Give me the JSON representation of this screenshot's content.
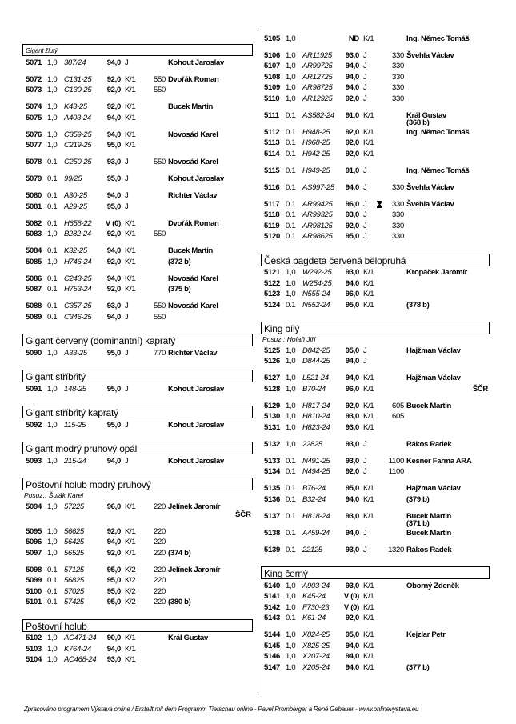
{
  "left_column": [
    {
      "header": "Gigant žlutý",
      "header_style": "small",
      "groups": [
        [
          [
            "5071",
            "1,0",
            "387/24",
            "94,0",
            "J",
            "",
            "Kohout Jaroslav"
          ]
        ],
        [
          [
            "5072",
            "1,0",
            "C131-25",
            "92,0",
            "K/1",
            "550",
            "Dvořák Roman"
          ],
          [
            "5073",
            "1,0",
            "C130-25",
            "92,0",
            "K/1",
            "550",
            ""
          ]
        ],
        [
          [
            "5074",
            "1,0",
            "K43-25",
            "92,0",
            "K/1",
            "",
            "Bucek Martin"
          ],
          [
            "5075",
            "1,0",
            "A403-24",
            "94,0",
            "K/1",
            "",
            ""
          ]
        ],
        [
          [
            "5076",
            "1,0",
            "C359-25",
            "94,0",
            "K/1",
            "",
            "Novosád Karel"
          ],
          [
            "5077",
            "1,0",
            "C219-25",
            "95,0",
            "K/1",
            "",
            ""
          ]
        ],
        [
          [
            "5078",
            "0.1",
            "C250-25",
            "93,0",
            "J",
            "550",
            "Novosád Karel"
          ]
        ],
        [
          [
            "5079",
            "0.1",
            "99/25",
            "95,0",
            "J",
            "",
            "Kohout Jaroslav"
          ]
        ],
        [
          [
            "5080",
            "0.1",
            "A30-25",
            "94,0",
            "J",
            "",
            "Richter Václav"
          ],
          [
            "5081",
            "0.1",
            "A29-25",
            "95,0",
            "J",
            "",
            ""
          ]
        ],
        [
          [
            "5082",
            "0.1",
            "H658-22",
            "V (0)",
            "K/1",
            "",
            "Dvořák Roman"
          ],
          [
            "5083",
            "1,0",
            "B282-24",
            "92,0",
            "K/1",
            "550",
            ""
          ]
        ],
        [
          [
            "5084",
            "0.1",
            "K32-25",
            "94,0",
            "K/1",
            "",
            "Bucek Martin"
          ],
          [
            "5085",
            "1,0",
            "H746-24",
            "92,0",
            "K/1",
            "",
            "(372 b)"
          ]
        ],
        [
          [
            "5086",
            "0.1",
            "C243-25",
            "94,0",
            "K/1",
            "",
            "Novosád Karel"
          ],
          [
            "5087",
            "0.1",
            "H753-24",
            "92,0",
            "K/1",
            "",
            "(375 b)"
          ]
        ],
        [
          [
            "5088",
            "0.1",
            "C357-25",
            "93,0",
            "J",
            "550",
            "Novosád Karel"
          ],
          [
            "5089",
            "0.1",
            "C346-25",
            "94,0",
            "J",
            "550",
            ""
          ]
        ]
      ]
    },
    {
      "header": "Gigant červený (dominantní) kapratý",
      "groups": [
        [
          [
            "5090",
            "1,0",
            "A33-25",
            "95,0",
            "J",
            "770",
            "Richter Václav"
          ]
        ]
      ]
    },
    {
      "header": "Gigant stříbřitý",
      "groups": [
        [
          [
            "5091",
            "1,0",
            "148-25",
            "95,0",
            "J",
            "",
            "Kohout Jaroslav"
          ]
        ]
      ]
    },
    {
      "header": "Gigant stříbřitý kapratý",
      "groups": [
        [
          [
            "5092",
            "1,0",
            "115-25",
            "95,0",
            "J",
            "",
            "Kohout Jaroslav"
          ]
        ]
      ]
    },
    {
      "header": "Gigant modrý pruhový opál",
      "groups": [
        [
          [
            "5093",
            "1,0",
            "215-24",
            "94,0",
            "J",
            "",
            "Kohout Jaroslav"
          ]
        ]
      ]
    },
    {
      "header": "Poštovní holub modrý pruhový",
      "judge": "Posuz.: Šulák Karel",
      "groups": [
        [
          [
            "5094",
            "1,0",
            "57225",
            "96,0",
            "K/1",
            "220",
            "Jelínek Jaromír",
            {
              "award_line": "ŠČR"
            }
          ]
        ],
        [
          [
            "5095",
            "1,0",
            "56625",
            "92,0",
            "K/1",
            "220",
            ""
          ],
          [
            "5096",
            "1,0",
            "56425",
            "94,0",
            "K/1",
            "220",
            ""
          ],
          [
            "5097",
            "1,0",
            "56525",
            "92,0",
            "K/1",
            "220",
            "(374 b)"
          ]
        ],
        [
          [
            "5098",
            "0.1",
            "57125",
            "95,0",
            "K/2",
            "220",
            "Jelínek Jaromír"
          ],
          [
            "5099",
            "0.1",
            "56825",
            "95,0",
            "K/2",
            "220",
            ""
          ],
          [
            "5100",
            "0.1",
            "57025",
            "95,0",
            "K/2",
            "220",
            ""
          ],
          [
            "5101",
            "0.1",
            "57425",
            "95,0",
            "K/2",
            "220",
            "(380 b)"
          ]
        ]
      ]
    },
    {
      "header": "Poštovní holub",
      "groups": [
        [
          [
            "5102",
            "1,0",
            "AC471-24",
            "90,0",
            "K/1",
            "",
            "Král Gustav"
          ],
          [
            "5103",
            "1,0",
            "K764-24",
            "94,0",
            "K/1",
            "",
            ""
          ],
          [
            "5104",
            "1,0",
            "AC468-24",
            "93,0",
            "K/1",
            "",
            ""
          ]
        ]
      ]
    }
  ],
  "right_column": [
    {
      "header": "",
      "groups": [
        [
          [
            "5105",
            "1,0",
            "",
            "ND",
            "K/1",
            "",
            "Ing. Němec Tomáš"
          ]
        ],
        [
          [
            "5106",
            "1,0",
            "AR11925",
            "93,0",
            "J",
            "330",
            "Švehla Václav"
          ],
          [
            "5107",
            "1,0",
            "AR99725",
            "94,0",
            "J",
            "330",
            ""
          ],
          [
            "5108",
            "1,0",
            "AR12725",
            "94,0",
            "J",
            "330",
            ""
          ],
          [
            "5109",
            "1,0",
            "AR98725",
            "94,0",
            "J",
            "330",
            ""
          ],
          [
            "5110",
            "1,0",
            "AR12925",
            "92,0",
            "J",
            "330",
            ""
          ]
        ],
        [
          [
            "5111",
            "0.1",
            "AS582-24",
            "91,0",
            "K/1",
            "",
            "Král Gustav",
            {
              "owner_note": "(368 b)"
            }
          ],
          [
            "5112",
            "0.1",
            "H948-25",
            "92,0",
            "K/1",
            "",
            "Ing. Němec Tomáš"
          ],
          [
            "5113",
            "0.1",
            "H968-25",
            "92,0",
            "K/1",
            "",
            ""
          ],
          [
            "5114",
            "0.1",
            "H942-25",
            "92,0",
            "K/1",
            "",
            ""
          ]
        ],
        [
          [
            "5115",
            "0.1",
            "H949-25",
            "91,0",
            "J",
            "",
            "Ing. Němec Tomáš"
          ]
        ],
        [
          [
            "5116",
            "0.1",
            "AS997-25",
            "94,0",
            "J",
            "330",
            "Švehla Václav"
          ]
        ],
        [
          [
            "5117",
            "0.1",
            "AR99425",
            "96,0",
            "J",
            "330",
            "Švehla Václav",
            {
              "trophy": "trophy-icon"
            }
          ],
          [
            "5118",
            "0.1",
            "AR99325",
            "93,0",
            "J",
            "330",
            ""
          ],
          [
            "5119",
            "0.1",
            "AR98125",
            "92,0",
            "J",
            "330",
            ""
          ],
          [
            "5120",
            "0.1",
            "AR98625",
            "95,0",
            "J",
            "330",
            ""
          ]
        ]
      ]
    },
    {
      "header": "Česká bagdeta červená bělopruhá",
      "groups": [
        [
          [
            "5121",
            "1,0",
            "W292-25",
            "93,0",
            "K/1",
            "",
            "Kropáček Jaromír"
          ],
          [
            "5122",
            "1,0",
            "W254-25",
            "94,0",
            "K/1",
            "",
            ""
          ],
          [
            "5123",
            "1,0",
            "N555-24",
            "96,0",
            "K/1",
            "",
            ""
          ],
          [
            "5124",
            "0.1",
            "N552-24",
            "95,0",
            "K/1",
            "",
            "(378 b)"
          ]
        ]
      ]
    },
    {
      "header": "King bílý",
      "judge": "Posuz.: Holaň Jiří",
      "groups": [
        [
          [
            "5125",
            "1,0",
            "D842-25",
            "95,0",
            "J",
            "",
            "Hajžman Václav"
          ],
          [
            "5126",
            "1,0",
            "D844-25",
            "94,0",
            "J",
            "",
            ""
          ]
        ],
        [
          [
            "5127",
            "1,0",
            "L521-24",
            "94,0",
            "K/1",
            "",
            "Hajžman Václav"
          ],
          [
            "5128",
            "1,0",
            "B70-24",
            "96,0",
            "K/1",
            "",
            "",
            {
              "award": "ŠČR"
            }
          ]
        ],
        [
          [
            "5129",
            "1,0",
            "H817-24",
            "92,0",
            "K/1",
            "605",
            "Bucek Martin"
          ],
          [
            "5130",
            "1,0",
            "H810-24",
            "93,0",
            "K/1",
            "605",
            ""
          ],
          [
            "5131",
            "1,0",
            "H823-24",
            "93,0",
            "K/1",
            "",
            ""
          ]
        ],
        [
          [
            "5132",
            "1,0",
            "22825",
            "93,0",
            "J",
            "",
            "Rákos Radek"
          ]
        ],
        [
          [
            "5133",
            "0.1",
            "N491-25",
            "93,0",
            "J",
            "1100",
            "Kesner Farma ARA"
          ],
          [
            "5134",
            "0.1",
            "N494-25",
            "92,0",
            "J",
            "1100",
            ""
          ]
        ],
        [
          [
            "5135",
            "0.1",
            "B76-24",
            "95,0",
            "K/1",
            "",
            "Hajžman Václav"
          ],
          [
            "5136",
            "0.1",
            "B32-24",
            "94,0",
            "K/1",
            "",
            "(379 b)"
          ]
        ],
        [
          [
            "5137",
            "0.1",
            "H818-24",
            "93,0",
            "K/1",
            "",
            "Bucek Martin",
            {
              "owner_note": "(371 b)"
            }
          ],
          [
            "5138",
            "0.1",
            "A459-24",
            "94,0",
            "J",
            "",
            "Bucek Martin"
          ]
        ],
        [
          [
            "5139",
            "0.1",
            "22125",
            "93,0",
            "J",
            "1320",
            "Rákos Radek"
          ]
        ]
      ]
    },
    {
      "header": "King černý",
      "groups": [
        [
          [
            "5140",
            "1,0",
            "A903-24",
            "93,0",
            "K/1",
            "",
            "Oborný Zdeněk"
          ],
          [
            "5141",
            "1,0",
            "K45-24",
            "V (0)",
            "K/1",
            "",
            ""
          ],
          [
            "5142",
            "1,0",
            "F730-23",
            "V (0)",
            "K/1",
            "",
            ""
          ],
          [
            "5143",
            "0.1",
            "K61-24",
            "92,0",
            "K/1",
            "",
            ""
          ]
        ],
        [
          [
            "5144",
            "1,0",
            "X824-25",
            "95,0",
            "K/1",
            "",
            "Kejzlar Petr"
          ],
          [
            "5145",
            "1,0",
            "X825-25",
            "94,0",
            "K/1",
            "",
            ""
          ],
          [
            "5146",
            "1,0",
            "X207-24",
            "94,0",
            "K/1",
            "",
            ""
          ],
          [
            "5147",
            "1,0",
            "X205-24",
            "94,0",
            "K/1",
            "",
            "(377 b)"
          ]
        ]
      ]
    }
  ],
  "footer": "Zpracováno programem Výstava online / Erstellt mit dem Programm Tierschau online - Pavel Promberger a René Gebauer - www.onlinevystava.eu"
}
